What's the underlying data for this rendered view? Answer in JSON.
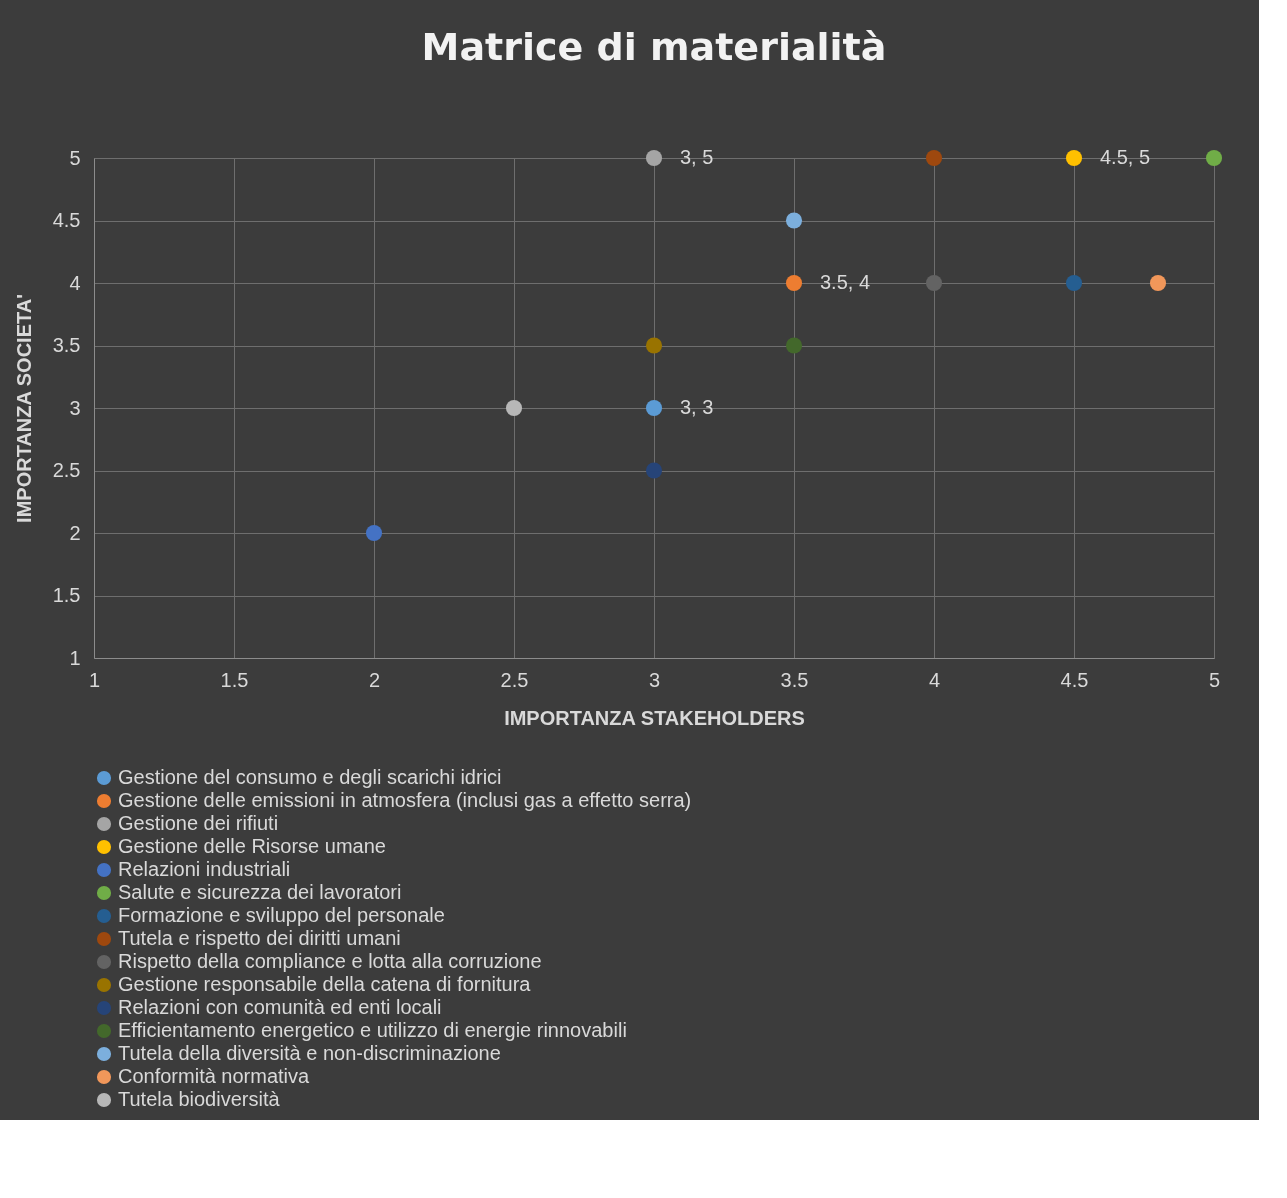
{
  "chart_data": {
    "type": "scatter",
    "title": "Matrice di materialità",
    "xlabel": "IMPORTANZA STAKEHOLDERS",
    "ylabel": "IMPORTANZA SOCIETA'",
    "xlim": [
      1,
      5
    ],
    "ylim": [
      1,
      5
    ],
    "xticks": [
      1,
      1.5,
      2,
      2.5,
      3,
      3.5,
      4,
      4.5,
      5
    ],
    "yticks": [
      1,
      1.5,
      2,
      2.5,
      3,
      3.5,
      4,
      4.5,
      5
    ],
    "grid": true,
    "legend": "bottom",
    "marker": "circle",
    "series": [
      {
        "name": "Gestione del consumo e degli scarichi idrici",
        "color": "#5b9bd5",
        "x": [
          3
        ],
        "values": [
          3
        ],
        "value_labels": [
          "3, 3"
        ]
      },
      {
        "name": "Gestione delle emissioni in atmosfera (inclusi gas a effetto serra)",
        "color": "#ed7d31",
        "x": [
          3.5
        ],
        "values": [
          4
        ],
        "value_labels": [
          "3.5, 4"
        ]
      },
      {
        "name": "Gestione dei rifiuti",
        "color": "#a5a5a5",
        "x": [
          3
        ],
        "values": [
          5
        ],
        "value_labels": [
          "3, 5"
        ]
      },
      {
        "name": "Gestione delle Risorse umane",
        "color": "#ffc000",
        "x": [
          4.5
        ],
        "values": [
          5
        ],
        "value_labels": [
          "4.5, 5"
        ]
      },
      {
        "name": "Relazioni industriali",
        "color": "#4472c4",
        "x": [
          2
        ],
        "values": [
          2
        ]
      },
      {
        "name": "Salute e sicurezza dei lavoratori",
        "color": "#70ad47",
        "x": [
          5
        ],
        "values": [
          5
        ]
      },
      {
        "name": "Formazione e sviluppo del personale",
        "color": "#255e91",
        "x": [
          4.5
        ],
        "values": [
          4
        ]
      },
      {
        "name": "Tutela e rispetto dei diritti umani",
        "color": "#9e480e",
        "x": [
          4
        ],
        "values": [
          5
        ]
      },
      {
        "name": "Rispetto della compliance e lotta alla corruzione",
        "color": "#636363",
        "x": [
          4
        ],
        "values": [
          4
        ]
      },
      {
        "name": "Gestione responsabile della catena di fornitura",
        "color": "#997300",
        "x": [
          3
        ],
        "values": [
          3.5
        ]
      },
      {
        "name": "Relazioni con comunità ed enti locali",
        "color": "#264478",
        "x": [
          3
        ],
        "values": [
          2.5
        ]
      },
      {
        "name": "Efficientamento energetico e utilizzo di energie rinnovabili",
        "color": "#43682b",
        "x": [
          3.5
        ],
        "values": [
          3.5
        ]
      },
      {
        "name": "Tutela della diversità e non-discriminazione",
        "color": "#7cafdd",
        "x": [
          3.5
        ],
        "values": [
          4.5
        ]
      },
      {
        "name": "Conformità normativa",
        "color": "#f1975a",
        "x": [
          4.8
        ],
        "values": [
          4
        ]
      },
      {
        "name": "Tutela biodiversità",
        "color": "#b7b7b7",
        "x": [
          2.5
        ],
        "values": [
          3
        ]
      }
    ]
  }
}
